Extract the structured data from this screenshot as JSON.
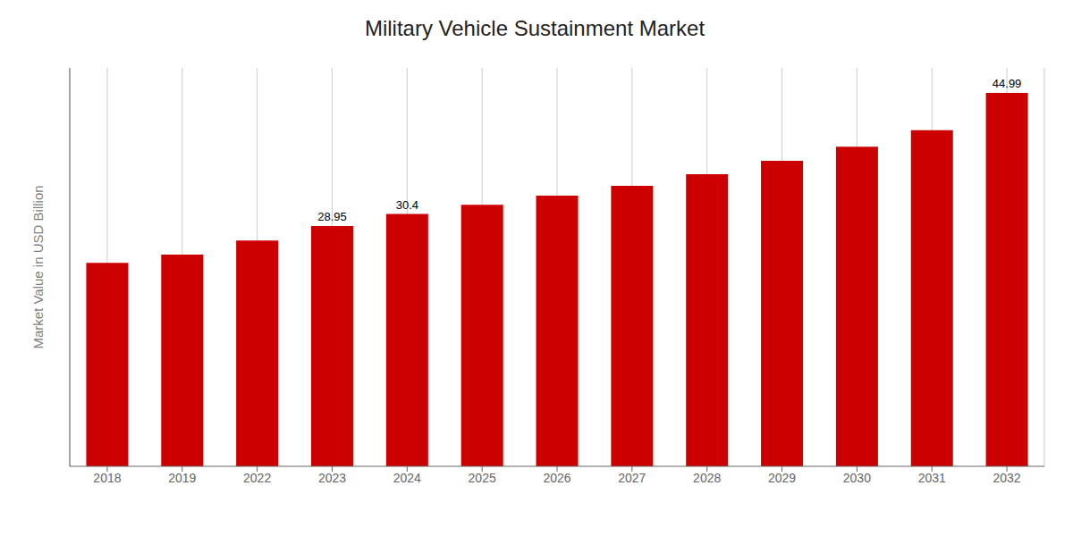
{
  "chart_data": {
    "type": "bar",
    "title": "Military Vehicle Sustainment Market",
    "ylabel": "Market Value in USD Billion",
    "categories": [
      "2018",
      "2019",
      "2022",
      "2023",
      "2024",
      "2025",
      "2026",
      "2027",
      "2028",
      "2029",
      "2030",
      "2031",
      "2032"
    ],
    "values": [
      24.5,
      25.5,
      27.2,
      28.95,
      30.4,
      31.5,
      32.6,
      33.8,
      35.2,
      36.8,
      38.5,
      40.5,
      44.99
    ],
    "value_labels": [
      null,
      null,
      null,
      "28.95",
      "30.4",
      null,
      null,
      null,
      null,
      null,
      null,
      null,
      "44.99"
    ],
    "color": "#CC0000",
    "ylim": [
      0,
      48
    ],
    "grid": true,
    "tick_labels": "x"
  }
}
